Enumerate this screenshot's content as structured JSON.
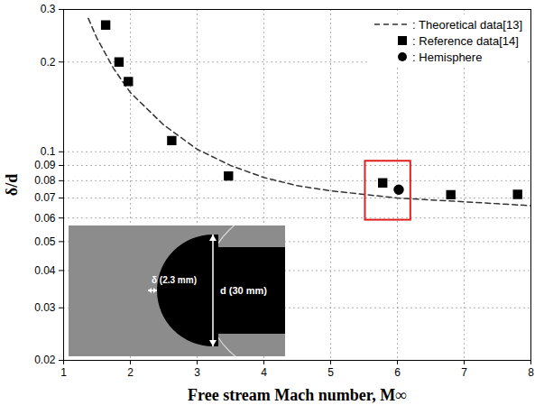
{
  "chart_data": {
    "type": "scatter",
    "x_label": "Free stream Mach number, M∞",
    "y_label": "δ/d",
    "log": "y",
    "grid": true,
    "legend": "top-right",
    "xlim": [
      1,
      8
    ],
    "xticks": [
      1,
      2,
      3,
      4,
      5,
      6,
      7,
      8
    ],
    "ylim": [
      0.02,
      0.3
    ],
    "yticks": [
      0.02,
      0.03,
      0.04,
      0.05,
      0.06,
      0.07,
      0.08,
      0.09,
      0.1,
      0.2,
      0.3
    ],
    "series": [
      {
        "name": ": Theoretical data[13]",
        "type": "line",
        "line_style": "dashed",
        "color": "#333333",
        "x": [
          1.37,
          1.5,
          1.75,
          2,
          2.5,
          3,
          3.5,
          4,
          4.5,
          5,
          5.5,
          6,
          6.5,
          7,
          7.5,
          8
        ],
        "values": [
          0.28,
          0.24,
          0.19,
          0.158,
          0.123,
          0.102,
          0.09,
          0.082,
          0.077,
          0.074,
          0.072,
          0.07,
          0.069,
          0.068,
          0.067,
          0.066
        ]
      },
      {
        "name": ": Reference data[14]",
        "type": "scatter",
        "marker": "square",
        "color": "#000000",
        "x": [
          1.63,
          1.83,
          1.97,
          2.62,
          3.47,
          5.78,
          6.8,
          7.8
        ],
        "values": [
          0.266,
          0.2,
          0.172,
          0.109,
          0.083,
          0.0787,
          0.0718,
          0.072
        ]
      },
      {
        "name": ": Hemisphere",
        "type": "scatter",
        "marker": "circle",
        "color": "#000000",
        "x": [
          6.02
        ],
        "values": [
          0.0747
        ]
      }
    ],
    "annotations": [
      {
        "type": "rect",
        "color": "#e02020",
        "x": [
          5.52,
          6.2
        ],
        "y": [
          0.059,
          0.093
        ]
      }
    ],
    "inset": {
      "labels": [
        "δ (2.3 mm)",
        "d (30 mm)"
      ]
    }
  }
}
